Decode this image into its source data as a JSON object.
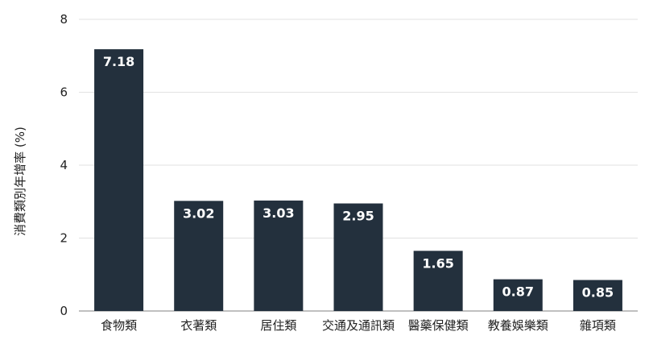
{
  "chart_data": {
    "type": "bar",
    "title": "",
    "xlabel": "",
    "ylabel": "消費類別年增率 (%)",
    "ylim": [
      0,
      8
    ],
    "yticks": [
      0,
      2,
      4,
      6,
      8
    ],
    "grid": true,
    "legend": "none",
    "bar_color": "#23303d",
    "categories": [
      "食物類",
      "衣著類",
      "居住類",
      "交通及通訊類",
      "醫藥保健類",
      "教養娛樂類",
      "雜項類"
    ],
    "values": [
      7.18,
      3.02,
      3.03,
      2.95,
      1.65,
      0.87,
      0.85
    ],
    "data_labels": [
      "7.18",
      "3.02",
      "3.03",
      "2.95",
      "1.65",
      "0.87",
      "0.85"
    ]
  }
}
